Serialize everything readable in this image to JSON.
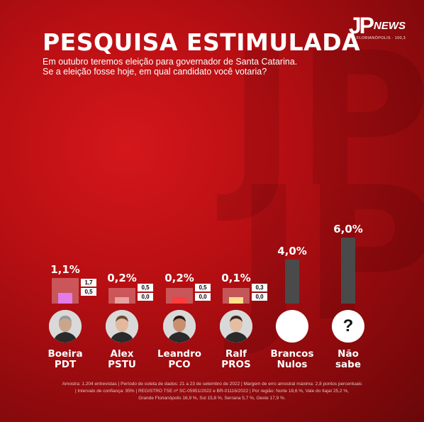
{
  "brand": {
    "logo_text": "JP",
    "news_text": "NEWS",
    "location": "FLORIANÓPOLIS · 100,3"
  },
  "header": {
    "title": "PESQUISA ESTIMULADA",
    "subtitle_line1": "Em outubro teremos eleição para governador de Santa Catarina.",
    "subtitle_line2": "Se a eleição fosse hoje, em qual candidato você votaria?"
  },
  "chart_data": {
    "type": "bar",
    "categories": [
      "Boeira PDT",
      "Alex PSTU",
      "Leandro PCO",
      "Ralf PROS",
      "Brancos Nulos",
      "Não sabe"
    ],
    "values": [
      1.1,
      0.2,
      0.2,
      0.1,
      4.0,
      6.0
    ],
    "labels": [
      "1,1%",
      "0,2%",
      "0,2%",
      "0,1%",
      "4,0%",
      "6,0%"
    ],
    "subvalues": [
      [
        "1,7",
        "0,5"
      ],
      [
        "0,5",
        "0,0"
      ],
      [
        "0,5",
        "0,0"
      ],
      [
        "0,3",
        "0,0"
      ]
    ]
  },
  "candidates": [
    {
      "name": "Boeira",
      "party": "PDT",
      "color": "#e37be8"
    },
    {
      "name": "Alex",
      "party": "PSTU",
      "color": "#e8a0a0"
    },
    {
      "name": "Leandro",
      "party": "PCO",
      "color": "#ff3b3b"
    },
    {
      "name": "Ralf",
      "party": "PROS",
      "color": "#ffe08a"
    },
    {
      "name": "Brancos",
      "party": "Nulos"
    },
    {
      "name": "Não",
      "party": "sabe",
      "icon": "?"
    }
  ],
  "footer": {
    "line1": "Amostra: 1.204 entrevistas | Período de coleta de dados: 21 a 23 de setembro de 2022 | Margem de erro amostral máxima: 2,8 pontos percentuais",
    "line2": "| Intervalo de confiança: 95% | REGISTRO TSE nº SC-05951/2022 e BR-01116/2022 | Por região: Norte 18,6 %, Vale do Itajaí 25,2 %,",
    "line3": "Grande Florianópolis 16,9 %, Sul 15,8 %, Serrana 5,7 %, Oeste 17,9 %."
  }
}
